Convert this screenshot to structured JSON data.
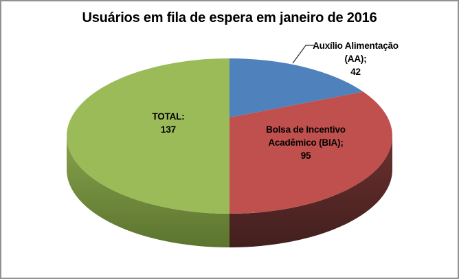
{
  "chart": {
    "background": "#FFFFFF",
    "border_color": "#919191",
    "text_color": "#000000"
  },
  "chart_data": {
    "type": "pie",
    "style": "3d",
    "title": "Usuários em fila de espera em janeiro de 2016",
    "legend_position": "none",
    "start_angle_deg": 0,
    "direction": "clockwise",
    "slices": [
      {
        "name": "Auxílio Alimentação (AA)",
        "value": 42,
        "color": "#4F81BD",
        "side_color_top": "#3A608C",
        "side_color_bottom": "#2E4C6F",
        "label_lines": [
          "Auxílio Alimentação",
          "(AA);",
          "42"
        ],
        "label_placement": "outside-callout"
      },
      {
        "name": "Bolsa de Incentivo Acadêmico (BIA)",
        "value": 95,
        "color": "#C0504D",
        "side_color_top": "#6B312E",
        "side_color_bottom": "#421F1E",
        "label_lines": [
          "Bolsa de Incentivo",
          "Acadêmico (BIA);",
          "95"
        ],
        "label_placement": "inside"
      },
      {
        "name": "TOTAL",
        "value": 137,
        "color": "#9BBB59",
        "side_color_top": "#86A24D",
        "side_color_bottom": "#5C742E",
        "label_lines": [
          "TOTAL:",
          "137"
        ],
        "label_placement": "inside"
      }
    ]
  }
}
